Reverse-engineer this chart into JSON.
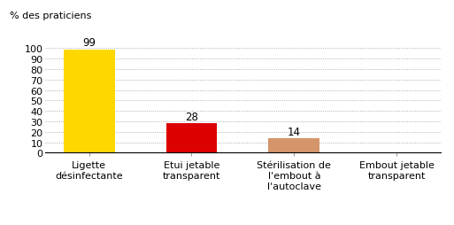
{
  "categories": [
    "Ligette\ndésinfectante",
    "Etui jetable\ntransparent",
    "Stérilisation de\nl'embout à\nl'autoclave",
    "Embout jetable\ntransparent"
  ],
  "values": [
    99,
    28,
    14,
    0
  ],
  "bar_colors": [
    "#FFD700",
    "#DD0000",
    "#D4956A",
    "#D4956A"
  ],
  "value_labels": [
    99,
    28,
    14,
    null
  ],
  "ylabel": "% des praticiens",
  "ylim": [
    0,
    108
  ],
  "yticks": [
    0,
    10,
    20,
    30,
    40,
    50,
    60,
    70,
    80,
    90,
    100
  ],
  "background_color": "#ffffff",
  "bar_width": 0.5,
  "label_fontsize": 8.5,
  "tick_fontsize": 8,
  "ylabel_fontsize": 8
}
